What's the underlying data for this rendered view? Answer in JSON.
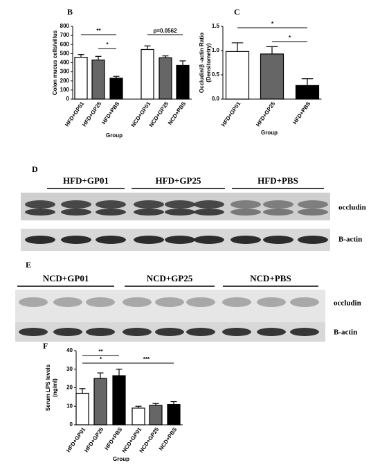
{
  "chart_data": [
    {
      "type": "bar",
      "panel": "B",
      "y_label": [
        "Colon mucus cells/villus"
      ],
      "x_label": "Group",
      "categories": [
        "HFD+GP01",
        "HFD+GP25",
        "HFD+PBS",
        "NCD+GP01",
        "NCD+GP25",
        "NCD+PBS"
      ],
      "values": [
        460,
        430,
        230,
        545,
        455,
        370
      ],
      "errors": [
        30,
        40,
        20,
        40,
        20,
        50
      ],
      "colors": [
        "#ffffff",
        "#666666",
        "#000000",
        "#ffffff",
        "#666666",
        "#000000"
      ],
      "ylim": [
        0,
        800
      ],
      "yticks": [
        0,
        100,
        200,
        300,
        400,
        500,
        600,
        700,
        800
      ],
      "annotations": [
        "**",
        "*",
        "p=0.0562"
      ]
    },
    {
      "type": "bar",
      "panel": "C",
      "y_label": [
        "Occludin/β -actin Ratio",
        "(Densitometry)"
      ],
      "x_label": "Group",
      "categories": [
        "HFD+GP01",
        "HFD+GP25",
        "HFD+PBS"
      ],
      "values": [
        0.98,
        0.93,
        0.28
      ],
      "errors": [
        0.18,
        0.15,
        0.14
      ],
      "colors": [
        "#ffffff",
        "#666666",
        "#000000"
      ],
      "ylim": [
        0,
        1.5
      ],
      "yticks": [
        {
          "value": 0,
          "label": "0.0"
        },
        0.5,
        {
          "value": 1,
          "label": "1.0"
        },
        1.5
      ],
      "annotations": [
        "*",
        "*"
      ]
    },
    {
      "type": "bar",
      "panel": "F",
      "y_label": [
        "Serum LPS levels",
        "(ng/ml)"
      ],
      "x_label": "Group",
      "categories": [
        "HFD+GP01",
        "HFD+GP25",
        "HFD+PBS",
        "NCD+GP01",
        "NCD+GP25",
        "NCD+PBS"
      ],
      "values": [
        17,
        25,
        26.5,
        9,
        10.5,
        11
      ],
      "errors": [
        2.5,
        3,
        3.5,
        1,
        1,
        1.5
      ],
      "colors": [
        "#ffffff",
        "#666666",
        "#000000",
        "#ffffff",
        "#666666",
        "#000000"
      ],
      "ylim": [
        0,
        40
      ],
      "yticks": [
        0,
        10,
        20,
        30,
        40
      ],
      "annotations": [
        "**",
        "*",
        "***"
      ]
    }
  ],
  "blots": [
    {
      "panel": "D",
      "groups": [
        "HFD+GP01",
        "HFD+GP25",
        "HFD+PBS"
      ],
      "rows": [
        "occludin",
        "B-actin"
      ]
    },
    {
      "panel": "E",
      "groups": [
        "NCD+GP01",
        "NCD+GP25",
        "NCD+PBS"
      ],
      "rows": [
        "occludin",
        "B-actin"
      ]
    }
  ]
}
